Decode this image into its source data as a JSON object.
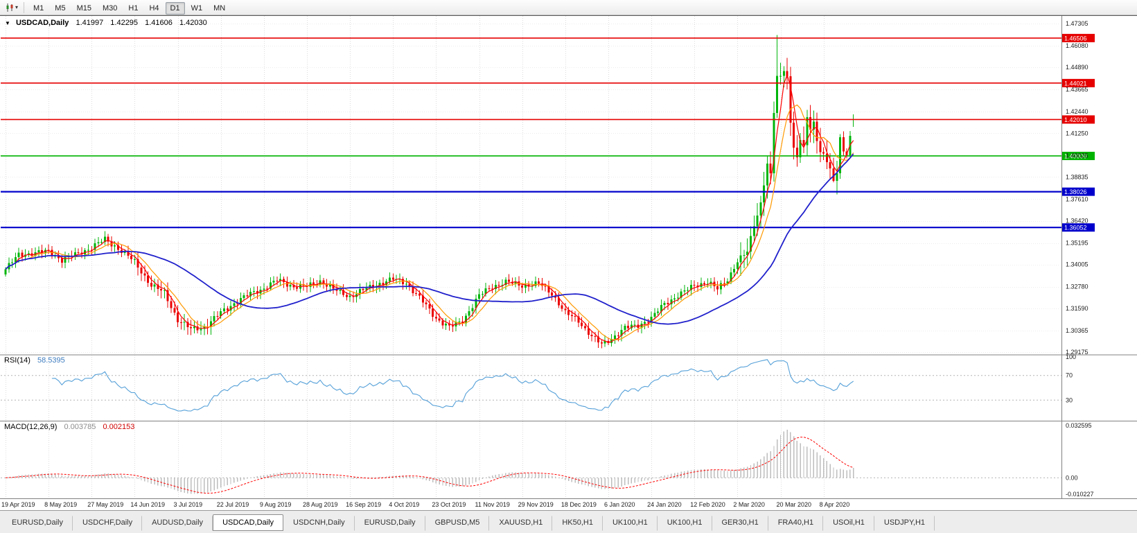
{
  "toolbar": {
    "timeframes": [
      "M1",
      "M5",
      "M15",
      "M30",
      "H1",
      "H4",
      "D1",
      "W1",
      "MN"
    ],
    "active_timeframe": "D1"
  },
  "icons": {
    "chart_dropdown_caret": "▾",
    "title_collapse": "▼"
  },
  "chart": {
    "title": {
      "symbol": "USDCAD,Daily",
      "open": "1.41997",
      "high": "1.42295",
      "low": "1.41606",
      "close": "1.42030"
    },
    "price_axis": [
      "1.47305",
      "1.46080",
      "1.44890",
      "1.43665",
      "1.42440",
      "1.41250",
      "1.40025",
      "1.38835",
      "1.37610",
      "1.36420",
      "1.35195",
      "1.34005",
      "1.32780",
      "1.31590",
      "1.30365",
      "1.29175"
    ],
    "date_axis": [
      "19 Apr 2019",
      "8 May 2019",
      "27 May 2019",
      "14 Jun 2019",
      "3 Jul 2019",
      "22 Jul 2019",
      "9 Aug 2019",
      "28 Aug 2019",
      "16 Sep 2019",
      "4 Oct 2019",
      "23 Oct 2019",
      "11 Nov 2019",
      "29 Nov 2019",
      "18 Dec 2019",
      "6 Jan 2020",
      "24 Jan 2020",
      "12 Feb 2020",
      "2 Mar 2020",
      "20 Mar 2020",
      "8 Apr 2020"
    ],
    "horizontal_lines": [
      {
        "price": "1.46506",
        "value": 1.46506,
        "color": "#e60000",
        "width": 1.6
      },
      {
        "price": "1.44021",
        "value": 1.44021,
        "color": "#e60000",
        "width": 1.6
      },
      {
        "price": "1.42010",
        "value": 1.4201,
        "color": "#e60000",
        "width": 1.6
      },
      {
        "price": "1.40000",
        "value": 1.4,
        "color": "#00b300",
        "width": 1.6
      },
      {
        "price": "1.38026",
        "value": 1.38026,
        "color": "#0000cc",
        "width": 2.2
      },
      {
        "price": "1.36052",
        "value": 1.36052,
        "color": "#0000cc",
        "width": 2.2
      }
    ]
  },
  "rsi": {
    "label": "RSI(14)",
    "value": "58.5395",
    "axis_labels": [
      "100",
      "70",
      "30"
    ],
    "levels": [
      70,
      30
    ],
    "scale": [
      0,
      100
    ]
  },
  "macd": {
    "label": "MACD(12,26,9)",
    "value_main": "0.003785",
    "value_signal": "0.002153",
    "axis_labels": [
      "0.032595",
      "0.00",
      "-0.010227"
    ],
    "scale": [
      -0.010227,
      0.032595
    ]
  },
  "colors": {
    "up": "#00b50b",
    "down": "#ea0000",
    "ma_fast": "#ff0000",
    "ma_mid": "#ff9900",
    "ma_slow": "#2020cc",
    "rsi_line": "#55a0d8",
    "macd_hist": "#bdbdbd",
    "macd_signal": "#ff0000",
    "grid": "#dcdcdc",
    "hgrid": "#ececec",
    "axis_text": "#1a1a1a",
    "separator": "#808080",
    "level_dash": "#b4b4b4"
  },
  "chart_data": {
    "type": "candlestick",
    "symbol": "USDCAD",
    "timeframe": "Daily",
    "title": "USDCAD,Daily 1.41997 1.42295 1.41606 1.42030",
    "ylim": [
      1.29175,
      1.47305
    ],
    "x_tick_labels": [
      "19 Apr 2019",
      "8 May 2019",
      "27 May 2019",
      "14 Jun 2019",
      "3 Jul 2019",
      "22 Jul 2019",
      "9 Aug 2019",
      "28 Aug 2019",
      "16 Sep 2019",
      "4 Oct 2019",
      "23 Oct 2019",
      "11 Nov 2019",
      "29 Nov 2019",
      "18 Dec 2019",
      "6 Jan 2020",
      "24 Jan 2020",
      "12 Feb 2020",
      "2 Mar 2020",
      "20 Mar 2020",
      "8 Apr 2020"
    ],
    "candles_per_tick": 13,
    "close_waypoints": [
      [
        0,
        1.3375
      ],
      [
        4,
        1.3455
      ],
      [
        9,
        1.3465
      ],
      [
        13,
        1.3475
      ],
      [
        17,
        1.3425
      ],
      [
        21,
        1.3455
      ],
      [
        26,
        1.3495
      ],
      [
        30,
        1.354
      ],
      [
        34,
        1.349
      ],
      [
        39,
        1.3415
      ],
      [
        44,
        1.3285
      ],
      [
        48,
        1.3245
      ],
      [
        52,
        1.3095
      ],
      [
        56,
        1.3045
      ],
      [
        60,
        1.3055
      ],
      [
        65,
        1.3135
      ],
      [
        70,
        1.32
      ],
      [
        74,
        1.324
      ],
      [
        78,
        1.327
      ],
      [
        82,
        1.3315
      ],
      [
        87,
        1.328
      ],
      [
        91,
        1.328
      ],
      [
        95,
        1.331
      ],
      [
        100,
        1.3255
      ],
      [
        104,
        1.3225
      ],
      [
        108,
        1.326
      ],
      [
        112,
        1.329
      ],
      [
        117,
        1.332
      ],
      [
        121,
        1.33
      ],
      [
        126,
        1.3195
      ],
      [
        130,
        1.3105
      ],
      [
        134,
        1.3055
      ],
      [
        138,
        1.309
      ],
      [
        143,
        1.323
      ],
      [
        147,
        1.328
      ],
      [
        151,
        1.3305
      ],
      [
        156,
        1.3285
      ],
      [
        161,
        1.3295
      ],
      [
        165,
        1.324
      ],
      [
        169,
        1.3135
      ],
      [
        173,
        1.309
      ],
      [
        177,
        1.3005
      ],
      [
        180,
        1.2958
      ],
      [
        182,
        1.298
      ],
      [
        187,
        1.305
      ],
      [
        191,
        1.3065
      ],
      [
        195,
        1.3105
      ],
      [
        199,
        1.3185
      ],
      [
        203,
        1.323
      ],
      [
        208,
        1.3285
      ],
      [
        212,
        1.3305
      ],
      [
        215,
        1.3265
      ],
      [
        218,
        1.332
      ],
      [
        221,
        1.342
      ],
      [
        224,
        1.347
      ],
      [
        226,
        1.362
      ],
      [
        228,
        1.374
      ],
      [
        230,
        1.396
      ],
      [
        231,
        1.389
      ],
      [
        232,
        1.424
      ],
      [
        233,
        1.4436
      ],
      [
        234,
        1.443
      ],
      [
        235,
        1.448
      ],
      [
        236,
        1.4445
      ],
      [
        237,
        1.4182
      ],
      [
        238,
        1.406
      ],
      [
        239,
        1.399
      ],
      [
        240,
        1.4075
      ],
      [
        241,
        1.4062
      ],
      [
        242,
        1.4206
      ],
      [
        243,
        1.4136
      ],
      [
        244,
        1.4204
      ],
      [
        245,
        1.4085
      ],
      [
        246,
        1.402
      ],
      [
        247,
        1.4028
      ],
      [
        248,
        1.3959
      ],
      [
        249,
        1.392
      ],
      [
        250,
        1.3866
      ],
      [
        251,
        1.3893
      ],
      [
        252,
        1.4098
      ],
      [
        253,
        1.404
      ],
      [
        254,
        1.4004
      ],
      [
        255,
        1.4113
      ],
      [
        256,
        1.4203
      ]
    ],
    "spike": {
      "index": 233,
      "high": 1.4668
    },
    "dip": {
      "index": 250,
      "low": 1.3855
    },
    "last_candle": {
      "open": 1.41997,
      "high": 1.42295,
      "low": 1.41606,
      "close": 1.4203
    },
    "moving_averages": [
      {
        "name": "fast",
        "period": 4,
        "color_key": "ma_fast"
      },
      {
        "name": "medium",
        "period": 8,
        "color_key": "ma_mid"
      },
      {
        "name": "slow",
        "period": 34,
        "color_key": "ma_slow"
      }
    ],
    "levels": [
      1.46506,
      1.44021,
      1.4201,
      1.4,
      1.38026,
      1.36052
    ],
    "indicators": [
      {
        "type": "RSI",
        "period": 14,
        "current": 58.5395
      },
      {
        "type": "MACD",
        "fast": 12,
        "slow": 26,
        "signal": 9,
        "current_macd": 0.003785,
        "current_signal": 0.002153
      }
    ]
  },
  "tabs": {
    "items": [
      {
        "label": "EURUSD,Daily",
        "active": false
      },
      {
        "label": "USDCHF,Daily",
        "active": false
      },
      {
        "label": "AUDUSD,Daily",
        "active": false
      },
      {
        "label": "USDCAD,Daily",
        "active": true
      },
      {
        "label": "USDCNH,Daily",
        "active": false
      },
      {
        "label": "EURUSD,Daily",
        "active": false
      },
      {
        "label": "GBPUSD,M5",
        "active": false
      },
      {
        "label": "XAUUSD,H1",
        "active": false
      },
      {
        "label": "HK50,H1",
        "active": false
      },
      {
        "label": "UK100,H1",
        "active": false
      },
      {
        "label": "UK100,H1",
        "active": false
      },
      {
        "label": "GER30,H1",
        "active": false
      },
      {
        "label": "FRA40,H1",
        "active": false
      },
      {
        "label": "USOil,H1",
        "active": false
      },
      {
        "label": "USDJPY,H1",
        "active": false
      }
    ]
  }
}
